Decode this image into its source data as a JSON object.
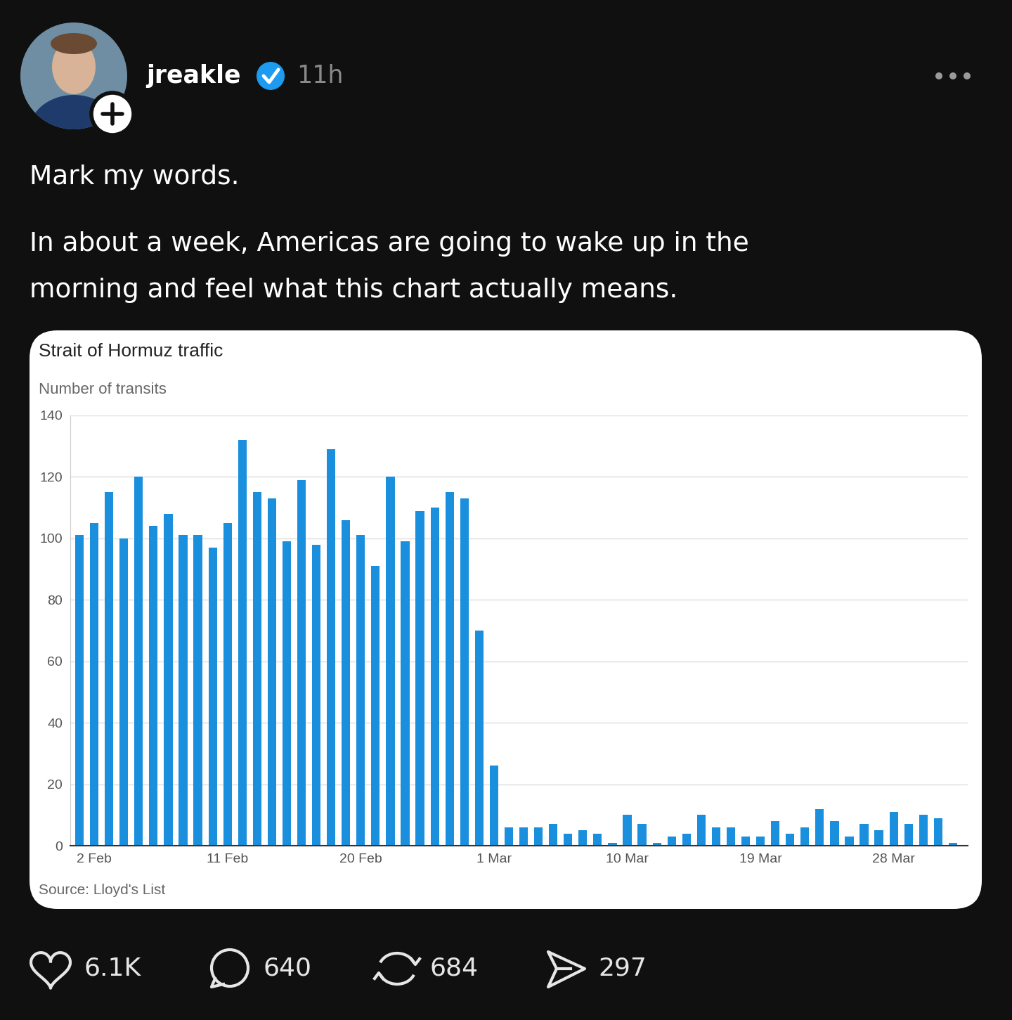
{
  "post": {
    "username": "jreakle",
    "time": "11h",
    "text": [
      [
        "Mark my words."
      ],
      [
        "In about a week, Americas are going to wake up in the",
        "morning and feel what this chart actually means."
      ]
    ]
  },
  "chart_data": {
    "type": "bar",
    "title": "Strait of Hormuz traffic",
    "subtitle": "Number of transits",
    "source": "Source: Lloyd's List",
    "categories": [
      null,
      "2 Feb",
      null,
      null,
      null,
      null,
      null,
      null,
      null,
      null,
      "11 Feb",
      null,
      null,
      null,
      null,
      null,
      null,
      null,
      null,
      "20 Feb",
      null,
      null,
      null,
      null,
      null,
      null,
      null,
      null,
      "1 Mar",
      null,
      null,
      null,
      null,
      null,
      null,
      null,
      null,
      "10 Mar",
      null,
      null,
      null,
      null,
      null,
      null,
      null,
      null,
      "19 Mar",
      null,
      null,
      null,
      null,
      null,
      null,
      null,
      null,
      "28 Mar",
      null,
      null,
      null,
      null
    ],
    "values": [
      101,
      105,
      115,
      100,
      120,
      104,
      108,
      101,
      101,
      97,
      105,
      132,
      115,
      113,
      99,
      119,
      98,
      129,
      106,
      101,
      91,
      120,
      99,
      109,
      110,
      115,
      113,
      70,
      26,
      6,
      6,
      6,
      7,
      4,
      5,
      4,
      1,
      10,
      7,
      1,
      3,
      4,
      10,
      6,
      6,
      3,
      3,
      8,
      4,
      6,
      12,
      8,
      3,
      7,
      5,
      11,
      7,
      10,
      9,
      1
    ],
    "color": "#1a8fdd",
    "ylim": [
      0,
      140
    ],
    "yticks": [
      0,
      20,
      40,
      60,
      80,
      100,
      120,
      140
    ],
    "grid": true
  },
  "stats": {
    "likes": "6.1K",
    "comments": "640",
    "reposts": "684",
    "shares": "297"
  }
}
